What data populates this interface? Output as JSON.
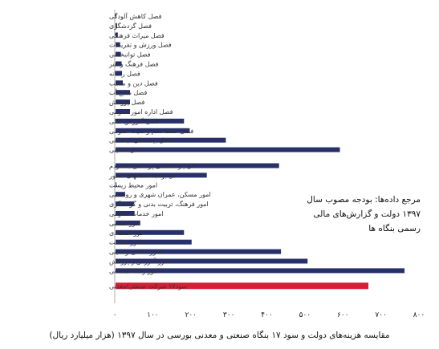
{
  "chart_data": {
    "type": "bar",
    "orientation": "horizontal",
    "categories": [
      "فصل کاهش آلودگی",
      "فصل گردشگری",
      "فصل میراث فرهنگی",
      "فصل ورزش و تفریحات",
      "فصل توانبخشی",
      "فصل فرهنگ و هنر",
      "فصل رسانه",
      "فصل دین و مذهب",
      "فصل منابع آب",
      "فصل پژوهش",
      "فصل اداره امور عمومی",
      "فصل آموزش عالی",
      "فصل حفظ نظم وامنیت عمومی",
      "فصل بیمه های اجتماعی",
      "فصل حمایتی",
      "کل یارانه نقدی پرداختی به مردم",
      "کل بودجه استانهای کشور",
      "امور محیط زیست",
      "امور مسکن، عمران شهری و روستایی",
      "امور فرهنگ، تربیت بدنی و گردشگری",
      "امور خدمات عمومی",
      "امور قضایی",
      "امور اقتصادی",
      "امور سلامت",
      "امور دفاعی وامنیتی",
      "امور آموزش و پژوهش",
      "امور رفاه اجتماعی",
      "سود۱۷ شرکت صنعتی/معدنی"
    ],
    "values": [
      2,
      4,
      6,
      12,
      14,
      16,
      17,
      19,
      38,
      38,
      38,
      180,
      195,
      290,
      590,
      430,
      240,
      2,
      25,
      48,
      50,
      65,
      180,
      200,
      435,
      505,
      760,
      665
    ],
    "groups": [
      15,
      12,
      1
    ],
    "bar_colors": [
      "#28306b",
      "#28306b",
      "#d11f35"
    ],
    "xlim": [
      0,
      800
    ],
    "x_ticks": [
      "۰",
      "۱۰۰",
      "۲۰۰",
      "۳۰۰",
      "۴۰۰",
      "۵۰۰",
      "۶۰۰",
      "۷۰۰",
      "۸۰۰"
    ],
    "annotation_lines": [
      "مرجع داده‌ها: بودجه مصوب سال",
      "۱۳۹۷ دولت و گزارش‌های مالی",
      "رسمی بنگاه ها"
    ],
    "caption": "مقایسه هزینه‌های دولت و سود ۱۷ بنگاه صنعتی و معدنی بورسی در سال ۱۳۹۷ (هزار میلیارد ریال)"
  }
}
